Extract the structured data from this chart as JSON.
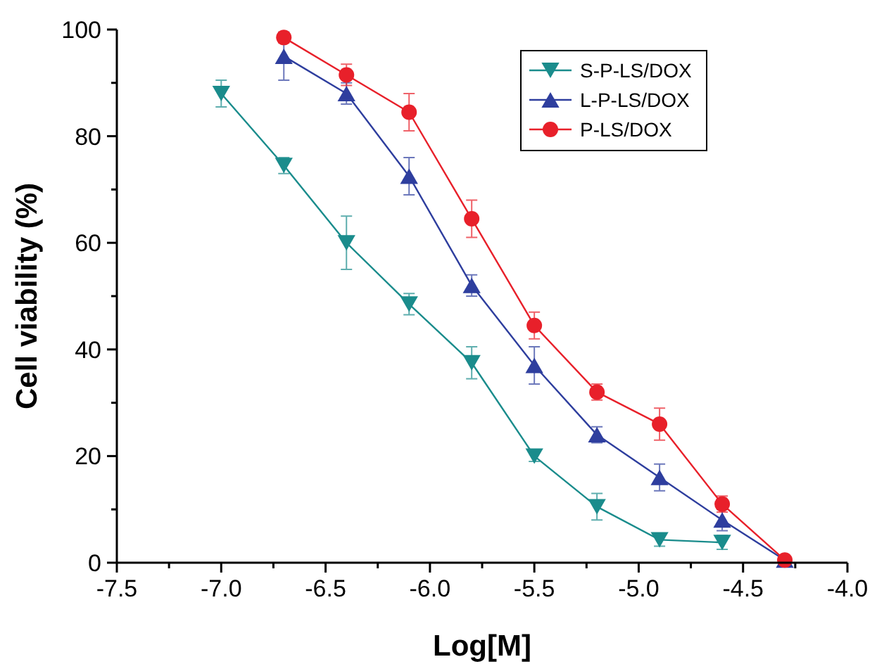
{
  "chart_data": {
    "type": "line",
    "xlabel": "Log[M]",
    "ylabel": "Cell viability (%)",
    "xlim": [
      -7.5,
      -4.0
    ],
    "xticks": [
      -7.5,
      {
        "value": -7.25,
        "label": null
      },
      {
        "value": -7.0,
        "label": "-7.0"
      },
      {
        "value": -6.75,
        "label": null
      },
      -6.5,
      {
        "value": -6.25,
        "label": null
      },
      {
        "value": -6.0,
        "label": "-6.0"
      },
      {
        "value": -5.75,
        "label": null
      },
      -5.5,
      {
        "value": -5.25,
        "label": null
      },
      {
        "value": -5.0,
        "label": "-5.0"
      },
      {
        "value": -4.75,
        "label": null
      },
      -4.5,
      {
        "value": -4.25,
        "label": null
      },
      {
        "value": -4.0,
        "label": "-4.0"
      }
    ],
    "ylim": [
      0,
      100
    ],
    "yticks": [
      0,
      {
        "value": 10,
        "label": null
      },
      20,
      {
        "value": 30,
        "label": null
      },
      40,
      {
        "value": 50,
        "label": null
      },
      60,
      {
        "value": 70,
        "label": null
      },
      80,
      {
        "value": 90,
        "label": null
      },
      100
    ],
    "grid": false,
    "legend": "top right",
    "line_style": "solid",
    "series": [
      {
        "name": "S-P-LS/DOX",
        "color": "#1a8c8c",
        "marker": "triangle-down",
        "x": [
          -7.0,
          -6.7,
          -6.4,
          -6.1,
          -5.8,
          -5.5,
          -5.2,
          -4.9,
          -4.6
        ],
        "values": [
          88,
          74.5,
          60,
          48.5,
          37.5,
          20,
          10.5,
          4.3,
          3.8
        ],
        "errors": [
          2.5,
          1.5,
          5,
          2,
          3,
          1,
          2.5,
          1.2,
          1.3
        ]
      },
      {
        "name": "L-P-LS/DOX",
        "color": "#2e3e9e",
        "marker": "triangle",
        "x": [
          -6.7,
          -6.4,
          -6.1,
          -5.8,
          -5.5,
          -5.2,
          -4.9,
          -4.6,
          -4.3
        ],
        "values": [
          95,
          88,
          72.5,
          52,
          37,
          24,
          16,
          8,
          0.5
        ],
        "errors": [
          4.5,
          2,
          3.5,
          2,
          3.5,
          1.5,
          2.5,
          2,
          null
        ]
      },
      {
        "name": "P-LS/DOX",
        "color": "#e8202a",
        "marker": "circle",
        "x": [
          -6.7,
          -6.4,
          -6.1,
          -5.8,
          -5.5,
          -5.2,
          -4.9,
          -4.6,
          -4.3
        ],
        "values": [
          98.5,
          91.5,
          84.5,
          64.5,
          44.5,
          32,
          26,
          11,
          0.5
        ],
        "errors": [
          1,
          2,
          3.5,
          3.5,
          2.5,
          1.5,
          3,
          1.5,
          null
        ]
      }
    ]
  }
}
